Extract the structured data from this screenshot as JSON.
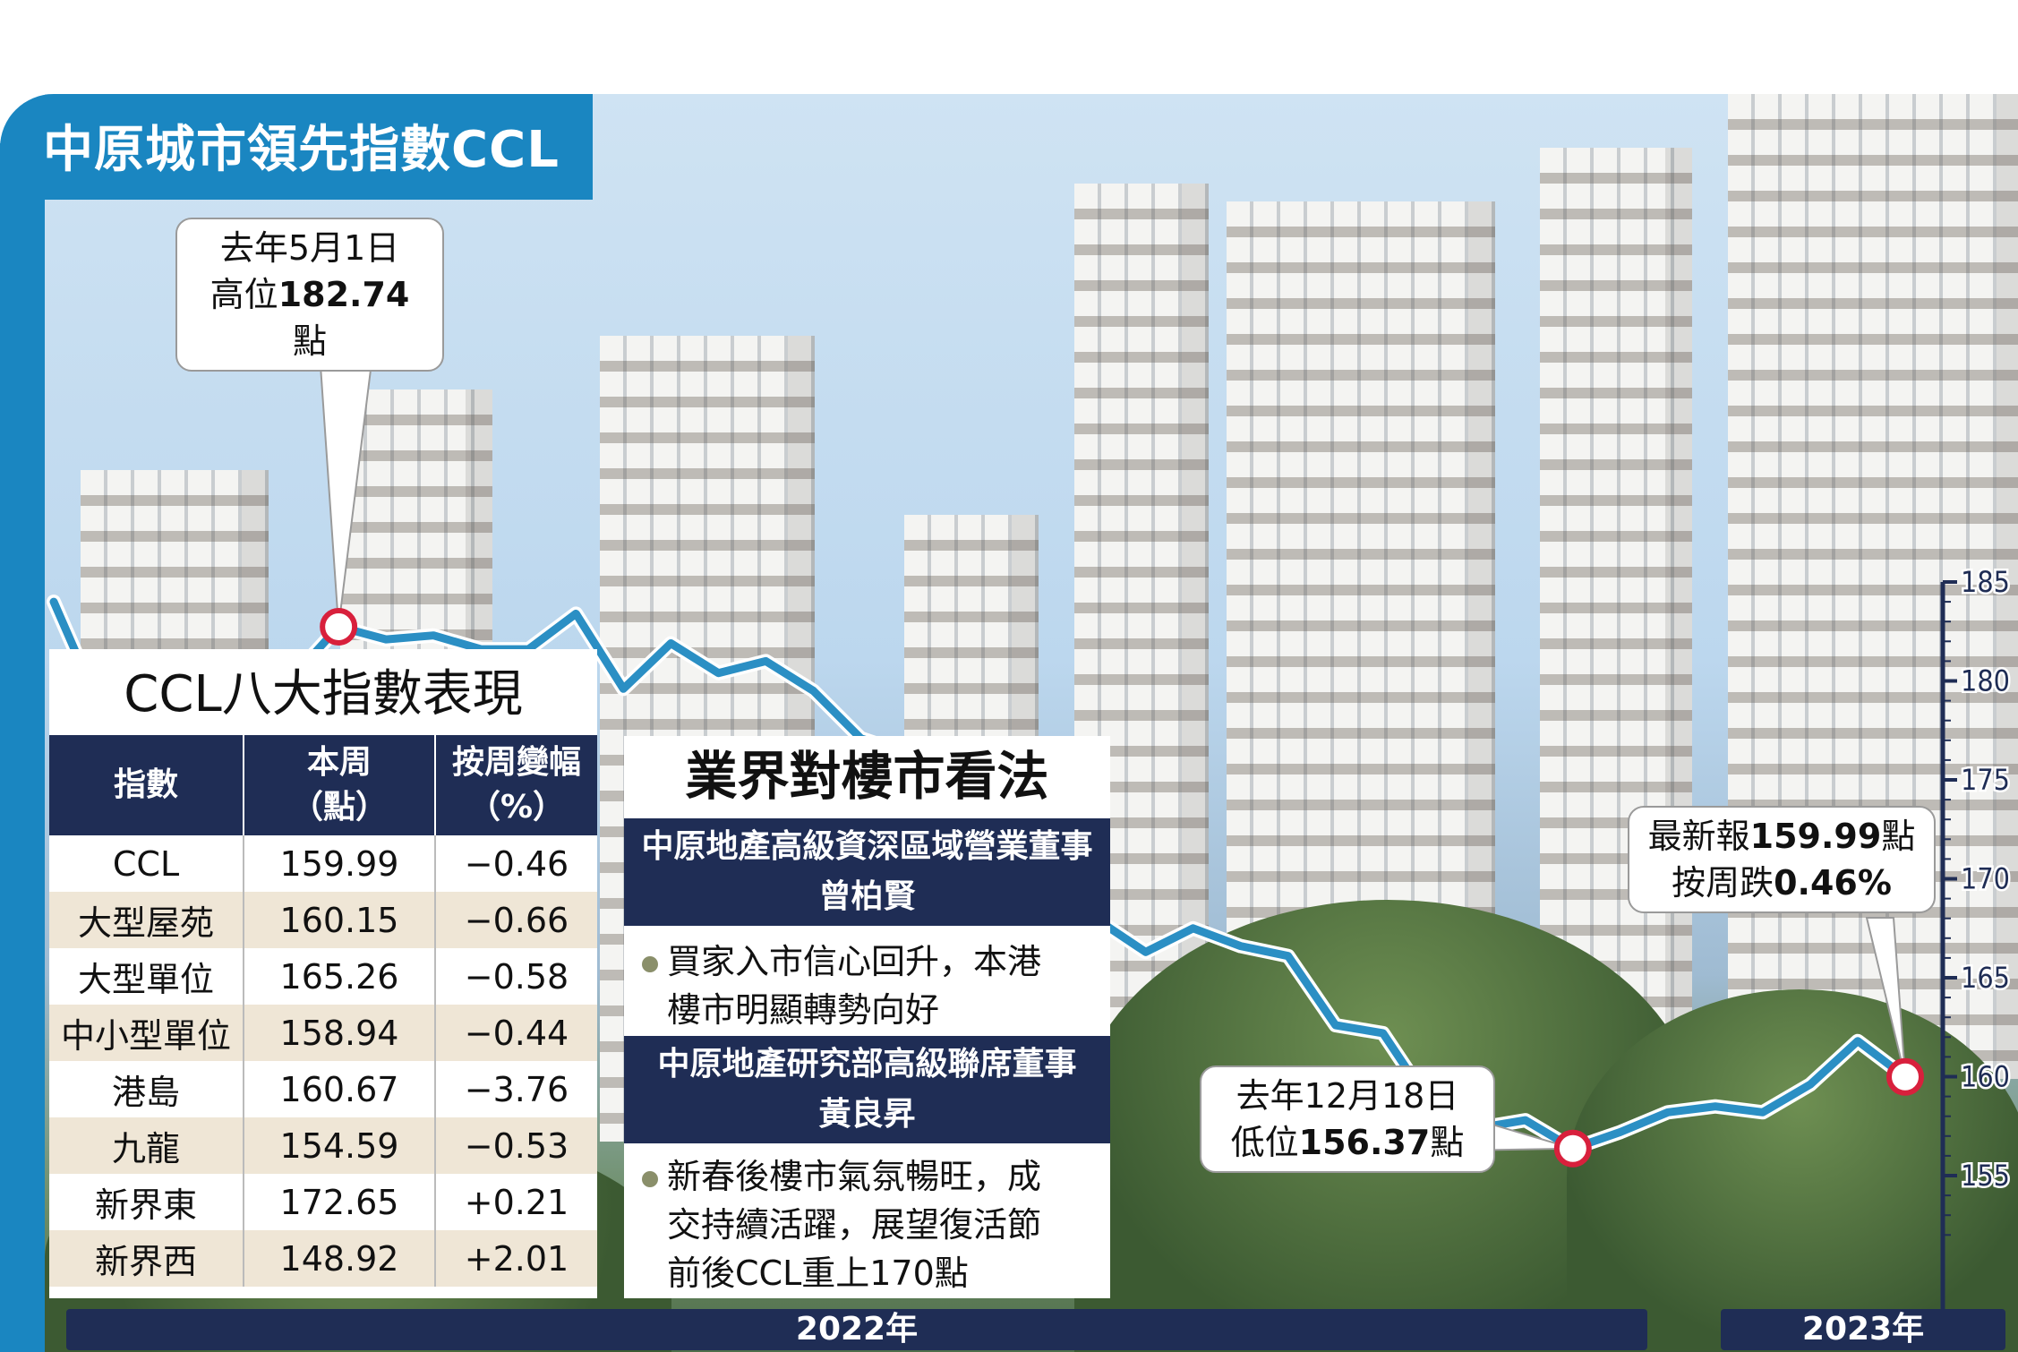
{
  "title": "中原城市領先指數CCL",
  "chart_data": {
    "type": "line",
    "series": [
      {
        "values": [
          184.0,
          178.5,
          180.7,
          176.6,
          180.1,
          180.1,
          182.74,
          182.1,
          182.3,
          181.6,
          181.6,
          183.4,
          179.6,
          181.9,
          180.4,
          181.0,
          179.5,
          177.1,
          176.3,
          174.6,
          172.1,
          169.3,
          167.9,
          166.3,
          167.5,
          166.6,
          166.1,
          162.6,
          162.2,
          158.6,
          157.4,
          157.8,
          156.37,
          157.2,
          158.2,
          158.5,
          158.2,
          159.6,
          161.8,
          159.99
        ]
      }
    ],
    "ylim": [
      150,
      185
    ],
    "y_ticks": [
      "185",
      "180",
      "175",
      "170",
      "165",
      "160",
      "155"
    ],
    "x_labels": [
      "2022年",
      "2023年"
    ],
    "annotations": [
      {
        "line1": "去年5月1日",
        "line2_prefix": "高位",
        "line2_value": "182.74",
        "line2_suffix": "點"
      },
      {
        "line1": "去年12月18日",
        "line2_prefix": "低位",
        "line2_value": "156.37",
        "line2_suffix": "點"
      },
      {
        "line1_prefix": "最新報",
        "line1_value": "159.99",
        "line1_suffix": "點",
        "line2_prefix": "按周跌",
        "line2_value": "0.46%"
      }
    ]
  },
  "ccl_table": {
    "title": "CCL八大指數表現",
    "headers": [
      "指數",
      "本周\n（點）",
      "按周變幅\n（%）"
    ],
    "rows": [
      [
        "CCL",
        "159.99",
        "−0.46"
      ],
      [
        "大型屋苑",
        "160.15",
        "−0.66"
      ],
      [
        "大型單位",
        "165.26",
        "−0.58"
      ],
      [
        "中小型單位",
        "158.94",
        "−0.44"
      ],
      [
        "港島",
        "160.67",
        "−3.76"
      ],
      [
        "九龍",
        "154.59",
        "−0.53"
      ],
      [
        "新界東",
        "172.65",
        "+0.21"
      ],
      [
        "新界西",
        "148.92",
        "+2.01"
      ]
    ]
  },
  "views": {
    "title": "業界對樓市看法",
    "items": [
      {
        "header1": "中原地產高級資深區域營業董事",
        "header2": "曾柏賢",
        "text1": "買家入市信心回升，本港",
        "text2": "樓市明顯轉勢向好"
      },
      {
        "header1": "中原地產研究部高級聯席董事",
        "header2": "黃良昇",
        "text1": "新春後樓市氣氛暢旺，成",
        "text2": "交持續活躍，展望復活節",
        "text3": "前後CCL重上170點"
      }
    ]
  },
  "colors": {
    "accent": "#1a86c1",
    "navy": "#1f2d55",
    "marker": "#d8203c"
  }
}
